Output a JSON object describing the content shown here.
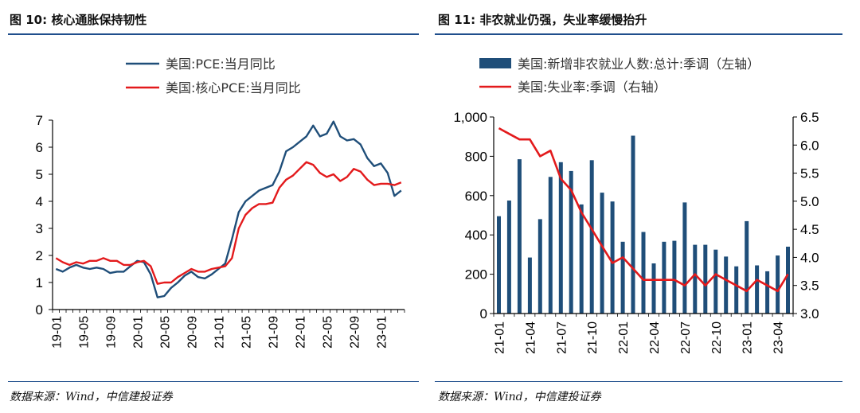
{
  "left": {
    "fig_title": "图 10: 核心通胀保持韧性",
    "source": "数据来源：Wind，中信建投证券"
  },
  "right": {
    "fig_title": "图 11: 非农就业仍强，失业率缓慢抬升",
    "source": "数据来源：Wind，中信建投证券"
  },
  "chart_data": [
    {
      "type": "line",
      "title": "",
      "xlabel": "",
      "ylabel": "",
      "ylim": [
        0,
        7
      ],
      "yticks": [
        0,
        1,
        2,
        3,
        4,
        5,
        6,
        7
      ],
      "xticklabels": [
        "19-01",
        "19-05",
        "19-09",
        "20-01",
        "20-05",
        "20-09",
        "21-01",
        "21-05",
        "21-09",
        "22-01",
        "22-05",
        "22-09",
        "23-01"
      ],
      "x": [
        "19-01",
        "19-02",
        "19-03",
        "19-04",
        "19-05",
        "19-06",
        "19-07",
        "19-08",
        "19-09",
        "19-10",
        "19-11",
        "19-12",
        "20-01",
        "20-02",
        "20-03",
        "20-04",
        "20-05",
        "20-06",
        "20-07",
        "20-08",
        "20-09",
        "20-10",
        "20-11",
        "20-12",
        "21-01",
        "21-02",
        "21-03",
        "21-04",
        "21-05",
        "21-06",
        "21-07",
        "21-08",
        "21-09",
        "21-10",
        "21-11",
        "21-12",
        "22-01",
        "22-02",
        "22-03",
        "22-04",
        "22-05",
        "22-06",
        "22-07",
        "22-08",
        "22-09",
        "22-10",
        "22-11",
        "22-12",
        "23-01",
        "23-02",
        "23-03",
        "23-04"
      ],
      "legend_position": "top-left",
      "grid": false,
      "series": [
        {
          "name": "美国:PCE:当月同比",
          "color": "#1f4e79",
          "values": [
            1.5,
            1.4,
            1.55,
            1.65,
            1.55,
            1.5,
            1.55,
            1.5,
            1.35,
            1.4,
            1.4,
            1.6,
            1.8,
            1.75,
            1.3,
            0.45,
            0.5,
            0.8,
            1.0,
            1.25,
            1.4,
            1.2,
            1.15,
            1.3,
            1.5,
            1.7,
            2.6,
            3.6,
            4.0,
            4.2,
            4.4,
            4.5,
            4.6,
            5.1,
            5.85,
            6.0,
            6.2,
            6.4,
            6.8,
            6.4,
            6.5,
            6.95,
            6.4,
            6.25,
            6.3,
            6.1,
            5.6,
            5.3,
            5.4,
            5.05,
            4.2,
            4.4
          ]
        },
        {
          "name": "美国:核心PCE:当月同比",
          "color": "#e31a1c",
          "values": [
            1.9,
            1.75,
            1.65,
            1.75,
            1.7,
            1.8,
            1.8,
            1.9,
            1.8,
            1.8,
            1.65,
            1.65,
            1.75,
            1.8,
            1.6,
            0.95,
            1.0,
            1.0,
            1.2,
            1.35,
            1.5,
            1.4,
            1.4,
            1.5,
            1.55,
            1.6,
            1.9,
            3.0,
            3.5,
            3.75,
            3.9,
            3.9,
            3.95,
            4.5,
            4.8,
            4.95,
            5.2,
            5.45,
            5.35,
            5.05,
            4.9,
            5.0,
            4.75,
            4.9,
            5.2,
            5.1,
            4.8,
            4.6,
            4.65,
            4.65,
            4.6,
            4.7
          ]
        }
      ]
    },
    {
      "type": "bar+line",
      "title": "",
      "legend_position": "top-left",
      "grid": false,
      "xticklabels": [
        "21-01",
        "21-04",
        "21-07",
        "21-10",
        "22-01",
        "22-04",
        "22-07",
        "22-10",
        "23-01",
        "23-04"
      ],
      "x": [
        "21-01",
        "21-02",
        "21-03",
        "21-04",
        "21-05",
        "21-06",
        "21-07",
        "21-08",
        "21-09",
        "21-10",
        "21-11",
        "21-12",
        "22-01",
        "22-02",
        "22-03",
        "22-04",
        "22-05",
        "22-06",
        "22-07",
        "22-08",
        "22-09",
        "22-10",
        "22-11",
        "22-12",
        "23-01",
        "23-02",
        "23-03",
        "23-04",
        "23-05"
      ],
      "y_left": {
        "ylim": [
          0,
          1000
        ],
        "yticklabels": [
          "0",
          "200",
          "400",
          "600",
          "800",
          "1,000"
        ],
        "ticks": [
          0,
          200,
          400,
          600,
          800,
          1000
        ]
      },
      "y_right": {
        "ylim": [
          3.0,
          6.5
        ],
        "yticklabels": [
          "3.0",
          "3.5",
          "4.0",
          "4.5",
          "5.0",
          "5.5",
          "6.0",
          "6.5"
        ],
        "ticks": [
          3.0,
          3.5,
          4.0,
          4.5,
          5.0,
          5.5,
          6.0,
          6.5
        ]
      },
      "series": [
        {
          "name": "美国:新增非农就业人数:总计:季调（左轴）",
          "type": "bar",
          "axis": "left",
          "color": "#1f4e79",
          "values": [
            495,
            575,
            785,
            285,
            480,
            695,
            770,
            725,
            555,
            780,
            615,
            570,
            365,
            905,
            415,
            255,
            365,
            370,
            565,
            350,
            350,
            325,
            290,
            240,
            470,
            245,
            215,
            295,
            340
          ]
        },
        {
          "name": "美国:失业率:季调（右轴）",
          "type": "line",
          "axis": "right",
          "color": "#e31a1c",
          "values": [
            6.3,
            6.2,
            6.1,
            6.1,
            5.8,
            5.9,
            5.4,
            5.2,
            4.8,
            4.5,
            4.2,
            3.9,
            4.0,
            3.8,
            3.6,
            3.6,
            3.6,
            3.6,
            3.5,
            3.7,
            3.5,
            3.7,
            3.6,
            3.5,
            3.4,
            3.6,
            3.5,
            3.4,
            3.7
          ]
        }
      ]
    }
  ]
}
